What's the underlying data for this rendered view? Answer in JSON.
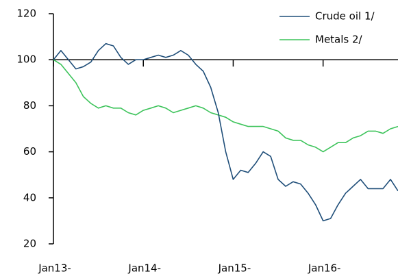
{
  "chart_data": {
    "type": "line",
    "x": [
      "2013-01",
      "2013-02",
      "2013-03",
      "2013-04",
      "2013-05",
      "2013-06",
      "2013-07",
      "2013-08",
      "2013-09",
      "2013-10",
      "2013-11",
      "2013-12",
      "2014-01",
      "2014-02",
      "2014-03",
      "2014-04",
      "2014-05",
      "2014-06",
      "2014-07",
      "2014-08",
      "2014-09",
      "2014-10",
      "2014-11",
      "2014-12",
      "2015-01",
      "2015-02",
      "2015-03",
      "2015-04",
      "2015-05",
      "2015-06",
      "2015-07",
      "2015-08",
      "2015-09",
      "2015-10",
      "2015-11",
      "2015-12",
      "2016-01",
      "2016-02",
      "2016-03",
      "2016-04",
      "2016-05",
      "2016-06",
      "2016-07",
      "2016-08",
      "2016-09",
      "2016-10",
      "2016-11"
    ],
    "series": [
      {
        "name": "Crude oil 1/",
        "color": "#1f4e79",
        "values": [
          100,
          104,
          100,
          96,
          97,
          99,
          104,
          107,
          106,
          101,
          98,
          100,
          100,
          101,
          102,
          101,
          102,
          104,
          102,
          98,
          95,
          88,
          77,
          60,
          48,
          52,
          51,
          55,
          60,
          58,
          48,
          45,
          47,
          46,
          42,
          37,
          30,
          31,
          37,
          42,
          45,
          48,
          44,
          44,
          44,
          48,
          43
        ]
      },
      {
        "name": "Metals 2/",
        "color": "#3cc35a",
        "values": [
          100,
          98,
          94,
          90,
          84,
          81,
          79,
          80,
          79,
          79,
          77,
          76,
          78,
          79,
          80,
          79,
          77,
          78,
          79,
          80,
          79,
          77,
          76,
          75,
          73,
          72,
          71,
          71,
          71,
          70,
          69,
          66,
          65,
          65,
          63,
          62,
          60,
          62,
          64,
          64,
          66,
          67,
          69,
          69,
          68,
          70,
          71
        ]
      }
    ],
    "xlim": [
      "2013-01",
      "2016-11"
    ],
    "xticks": [
      {
        "value": "2013-01",
        "label": "Jan13-"
      },
      {
        "value": "2014-01",
        "label": "Jan14-"
      },
      {
        "value": "2015-01",
        "label": "Jan15-"
      },
      {
        "value": "2016-01",
        "label": "Jan16-"
      }
    ],
    "ylim": [
      20,
      120
    ],
    "yticks": [
      20,
      40,
      60,
      80,
      100,
      120
    ],
    "x_axis_crosses": 100,
    "legend": "top-right"
  }
}
